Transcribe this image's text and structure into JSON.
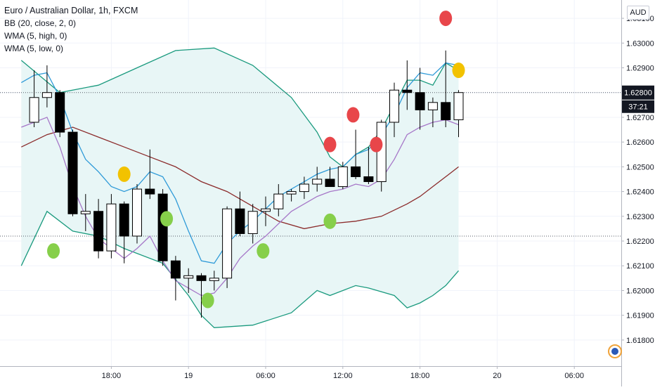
{
  "legend": {
    "title": "Euro / Australian Dollar, 1h, FXCM",
    "bb": "BB (20, close, 2, 0)",
    "wma_high": "WMA (5, high, 0)",
    "wma_low": "WMA (5, low, 0)"
  },
  "currency_button": "AUD",
  "colors": {
    "band": "#1a9a7e",
    "band_fill": "#e8f6f6",
    "basis": "#8b2b2b",
    "wma_high": "#2e9ad8",
    "wma_low": "#a677c8",
    "candle_up": "#ffffff",
    "candle_down": "#000000",
    "dot_red": "#e8464a",
    "dot_green": "#86cf4a",
    "dot_yellow": "#f2c200",
    "price_badge": "#131722"
  },
  "chart_data": {
    "type": "candlestick",
    "ylim": [
      1.6174,
      1.6314
    ],
    "y_ticks": [
      "1.63100",
      "1.63000",
      "1.62900",
      "1.62800",
      "1.62700",
      "1.62600",
      "1.62500",
      "1.62400",
      "1.62300",
      "1.62200",
      "1.62100",
      "1.62000",
      "1.61900",
      "1.61800"
    ],
    "x_labels": [
      {
        "t": 8,
        "label": "18:00"
      },
      {
        "t": 14,
        "label": "19"
      },
      {
        "t": 20,
        "label": "06:00"
      },
      {
        "t": 26,
        "label": "12:00"
      },
      {
        "t": 32,
        "label": "18:00"
      },
      {
        "t": 38,
        "label": "20"
      },
      {
        "t": 44,
        "label": "06:00"
      }
    ],
    "last_price": "1.62800",
    "countdown": "37:21",
    "candles": [
      {
        "t": 2,
        "o": 1.6268,
        "h": 1.6289,
        "l": 1.6266,
        "c": 1.6278
      },
      {
        "t": 3,
        "o": 1.6278,
        "h": 1.6291,
        "l": 1.6274,
        "c": 1.628
      },
      {
        "t": 4,
        "o": 1.628,
        "h": 1.6281,
        "l": 1.6262,
        "c": 1.6264
      },
      {
        "t": 5,
        "o": 1.6264,
        "h": 1.6265,
        "l": 1.623,
        "c": 1.6231
      },
      {
        "t": 6,
        "o": 1.6231,
        "h": 1.6239,
        "l": 1.6224,
        "c": 1.6232
      },
      {
        "t": 7,
        "o": 1.6232,
        "h": 1.6237,
        "l": 1.6213,
        "c": 1.6216
      },
      {
        "t": 8,
        "o": 1.6216,
        "h": 1.6239,
        "l": 1.6213,
        "c": 1.6235
      },
      {
        "t": 9,
        "o": 1.6235,
        "h": 1.6236,
        "l": 1.6211,
        "c": 1.6222
      },
      {
        "t": 10,
        "o": 1.6222,
        "h": 1.6243,
        "l": 1.6219,
        "c": 1.6241
      },
      {
        "t": 11,
        "o": 1.6241,
        "h": 1.6257,
        "l": 1.6237,
        "c": 1.6239
      },
      {
        "t": 12,
        "o": 1.6239,
        "h": 1.6241,
        "l": 1.621,
        "c": 1.6212
      },
      {
        "t": 13,
        "o": 1.6212,
        "h": 1.6214,
        "l": 1.6196,
        "c": 1.6205
      },
      {
        "t": 14,
        "o": 1.6205,
        "h": 1.6209,
        "l": 1.6199,
        "c": 1.6206
      },
      {
        "t": 15,
        "o": 1.6206,
        "h": 1.6207,
        "l": 1.6189,
        "c": 1.6204
      },
      {
        "t": 16,
        "o": 1.6204,
        "h": 1.6208,
        "l": 1.62,
        "c": 1.6205
      },
      {
        "t": 17,
        "o": 1.6205,
        "h": 1.6234,
        "l": 1.6201,
        "c": 1.6233
      },
      {
        "t": 18,
        "o": 1.6233,
        "h": 1.624,
        "l": 1.6222,
        "c": 1.6223
      },
      {
        "t": 19,
        "o": 1.6223,
        "h": 1.6235,
        "l": 1.6219,
        "c": 1.6232
      },
      {
        "t": 20,
        "o": 1.6232,
        "h": 1.6238,
        "l": 1.6226,
        "c": 1.6233
      },
      {
        "t": 21,
        "o": 1.6233,
        "h": 1.6243,
        "l": 1.623,
        "c": 1.6239
      },
      {
        "t": 22,
        "o": 1.6239,
        "h": 1.6241,
        "l": 1.6236,
        "c": 1.624
      },
      {
        "t": 23,
        "o": 1.624,
        "h": 1.6246,
        "l": 1.6237,
        "c": 1.6243
      },
      {
        "t": 24,
        "o": 1.6243,
        "h": 1.625,
        "l": 1.624,
        "c": 1.6245
      },
      {
        "t": 25,
        "o": 1.6245,
        "h": 1.625,
        "l": 1.6242,
        "c": 1.6242
      },
      {
        "t": 26,
        "o": 1.6242,
        "h": 1.6252,
        "l": 1.6241,
        "c": 1.625
      },
      {
        "t": 27,
        "o": 1.625,
        "h": 1.6265,
        "l": 1.6245,
        "c": 1.6246
      },
      {
        "t": 28,
        "o": 1.6246,
        "h": 1.6258,
        "l": 1.6243,
        "c": 1.6244
      },
      {
        "t": 29,
        "o": 1.6244,
        "h": 1.6269,
        "l": 1.624,
        "c": 1.6268
      },
      {
        "t": 30,
        "o": 1.6268,
        "h": 1.6284,
        "l": 1.6262,
        "c": 1.6281
      },
      {
        "t": 31,
        "o": 1.6281,
        "h": 1.6293,
        "l": 1.6273,
        "c": 1.628
      },
      {
        "t": 32,
        "o": 1.628,
        "h": 1.629,
        "l": 1.6265,
        "c": 1.6273
      },
      {
        "t": 33,
        "o": 1.6273,
        "h": 1.6278,
        "l": 1.6266,
        "c": 1.6276
      },
      {
        "t": 34,
        "o": 1.6276,
        "h": 1.6297,
        "l": 1.6266,
        "c": 1.6269
      },
      {
        "t": 35,
        "o": 1.6269,
        "h": 1.6281,
        "l": 1.6262,
        "c": 1.628
      }
    ],
    "series": [
      {
        "key": "bb_upper",
        "values": [
          [
            1,
            1.6293
          ],
          [
            4,
            1.628
          ],
          [
            7,
            1.6283
          ],
          [
            10,
            1.629
          ],
          [
            13,
            1.6297
          ],
          [
            16,
            1.6298
          ],
          [
            19,
            1.6291
          ],
          [
            22,
            1.6278
          ],
          [
            24,
            1.6264
          ],
          [
            25,
            1.6254
          ],
          [
            26,
            1.625
          ],
          [
            27,
            1.6255
          ],
          [
            28,
            1.6258
          ],
          [
            29,
            1.6265
          ],
          [
            30,
            1.6275
          ],
          [
            31,
            1.6285
          ],
          [
            32,
            1.6285
          ],
          [
            33,
            1.6283
          ],
          [
            34,
            1.6292
          ],
          [
            35,
            1.6289
          ]
        ]
      },
      {
        "key": "bb_lower",
        "values": [
          [
            1,
            1.621
          ],
          [
            3,
            1.6232
          ],
          [
            5,
            1.6224
          ],
          [
            7,
            1.6222
          ],
          [
            9,
            1.6217
          ],
          [
            12,
            1.6211
          ],
          [
            14,
            1.6198
          ],
          [
            15,
            1.619
          ],
          [
            16,
            1.6185
          ],
          [
            19,
            1.6186
          ],
          [
            22,
            1.6191
          ],
          [
            24,
            1.62
          ],
          [
            25,
            1.6198
          ],
          [
            27,
            1.6202
          ],
          [
            28,
            1.6201
          ],
          [
            30,
            1.6198
          ],
          [
            31,
            1.6193
          ],
          [
            32,
            1.6195
          ],
          [
            33,
            1.6198
          ],
          [
            34,
            1.6202
          ],
          [
            35,
            1.6208
          ]
        ]
      },
      {
        "key": "bb_basis",
        "values": [
          [
            1,
            1.6258
          ],
          [
            3,
            1.6263
          ],
          [
            5,
            1.6266
          ],
          [
            7,
            1.6262
          ],
          [
            9,
            1.6258
          ],
          [
            11,
            1.6254
          ],
          [
            13,
            1.625
          ],
          [
            15,
            1.6244
          ],
          [
            17,
            1.624
          ],
          [
            19,
            1.6234
          ],
          [
            21,
            1.6228
          ],
          [
            23,
            1.6225
          ],
          [
            25,
            1.6227
          ],
          [
            27,
            1.6228
          ],
          [
            29,
            1.623
          ],
          [
            31,
            1.6235
          ],
          [
            32,
            1.6238
          ],
          [
            33,
            1.6242
          ],
          [
            34,
            1.6246
          ],
          [
            35,
            1.625
          ]
        ]
      },
      {
        "key": "wma_high",
        "values": [
          [
            1,
            1.6284
          ],
          [
            2,
            1.6287
          ],
          [
            3,
            1.6288
          ],
          [
            4,
            1.6278
          ],
          [
            5,
            1.6264
          ],
          [
            6,
            1.6253
          ],
          [
            7,
            1.6248
          ],
          [
            8,
            1.6242
          ],
          [
            9,
            1.624
          ],
          [
            10,
            1.6242
          ],
          [
            11,
            1.6248
          ],
          [
            12,
            1.6246
          ],
          [
            13,
            1.6237
          ],
          [
            14,
            1.6224
          ],
          [
            15,
            1.6212
          ],
          [
            16,
            1.6211
          ],
          [
            17,
            1.6219
          ],
          [
            18,
            1.6224
          ],
          [
            19,
            1.6228
          ],
          [
            20,
            1.6233
          ],
          [
            21,
            1.6238
          ],
          [
            22,
            1.6241
          ],
          [
            23,
            1.6244
          ],
          [
            24,
            1.6247
          ],
          [
            25,
            1.6249
          ],
          [
            26,
            1.625
          ],
          [
            27,
            1.6255
          ],
          [
            28,
            1.6257
          ],
          [
            29,
            1.6263
          ],
          [
            30,
            1.6271
          ],
          [
            31,
            1.6282
          ],
          [
            32,
            1.6288
          ],
          [
            33,
            1.6287
          ],
          [
            34,
            1.6292
          ],
          [
            35,
            1.6291
          ]
        ]
      },
      {
        "key": "wma_low",
        "values": [
          [
            1,
            1.6266
          ],
          [
            2,
            1.6268
          ],
          [
            3,
            1.627
          ],
          [
            4,
            1.6258
          ],
          [
            5,
            1.6242
          ],
          [
            6,
            1.623
          ],
          [
            7,
            1.6221
          ],
          [
            8,
            1.6217
          ],
          [
            9,
            1.6213
          ],
          [
            10,
            1.6217
          ],
          [
            11,
            1.6222
          ],
          [
            12,
            1.6212
          ],
          [
            13,
            1.6204
          ],
          [
            14,
            1.6201
          ],
          [
            15,
            1.6198
          ],
          [
            16,
            1.6199
          ],
          [
            17,
            1.6205
          ],
          [
            18,
            1.6213
          ],
          [
            19,
            1.6218
          ],
          [
            20,
            1.6222
          ],
          [
            21,
            1.6227
          ],
          [
            22,
            1.6232
          ],
          [
            23,
            1.6235
          ],
          [
            24,
            1.6238
          ],
          [
            25,
            1.624
          ],
          [
            26,
            1.6241
          ],
          [
            27,
            1.6243
          ],
          [
            28,
            1.6242
          ],
          [
            29,
            1.6245
          ],
          [
            30,
            1.6253
          ],
          [
            31,
            1.6263
          ],
          [
            32,
            1.6266
          ],
          [
            33,
            1.6268
          ],
          [
            34,
            1.6269
          ],
          [
            35,
            1.6267
          ]
        ]
      }
    ],
    "markers": [
      {
        "t": 3.5,
        "y": 1.6216,
        "color": "red_none",
        "kind": "green"
      },
      {
        "t": 9.0,
        "y": 1.6247,
        "kind": "yellow"
      },
      {
        "t": 12.3,
        "y": 1.6229,
        "kind": "green"
      },
      {
        "t": 15.5,
        "y": 1.6196,
        "kind": "green"
      },
      {
        "t": 19.8,
        "y": 1.6216,
        "kind": "green"
      },
      {
        "t": 25.0,
        "y": 1.6259,
        "kind": "red"
      },
      {
        "t": 25.0,
        "y": 1.6228,
        "kind": "green"
      },
      {
        "t": 26.8,
        "y": 1.6271,
        "kind": "red"
      },
      {
        "t": 28.6,
        "y": 1.6259,
        "kind": "red"
      },
      {
        "t": 34.0,
        "y": 1.631,
        "kind": "red"
      },
      {
        "t": 35.0,
        "y": 1.6289,
        "kind": "yellow"
      }
    ],
    "reference_lines": [
      {
        "y": 1.628,
        "style": "dotted"
      },
      {
        "y": 1.6222,
        "style": "dotted"
      }
    ]
  }
}
